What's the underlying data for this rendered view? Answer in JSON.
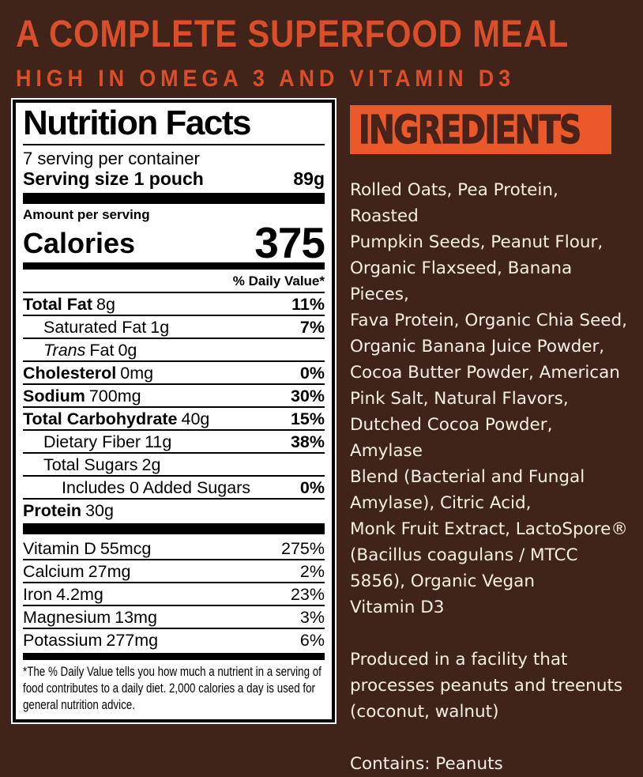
{
  "colors": {
    "background": "#412419",
    "headline": "#DB4E2A",
    "banner_bg": "#EB5829",
    "banner_text": "#48231A",
    "ingredients_text": "#F6EFE3",
    "panel_bg": "#FFFFFF",
    "panel_text": "#000000"
  },
  "header": {
    "line1": "A COMPLETE SUPERFOOD MEAL",
    "line2": "HIGH IN OMEGA 3 AND VITAMIN D3"
  },
  "nutrition": {
    "title": "Nutrition Facts",
    "servings_per_container": "7 serving per container",
    "serving_size_label": "Serving size 1 pouch",
    "serving_size_value": "89g",
    "amount_per_serving_label": "Amount per serving",
    "calories_label": "Calories",
    "calories_value": "375",
    "daily_value_header": "% Daily Value*",
    "rows": [
      {
        "label": "Total Fat",
        "amount": "8g",
        "dv": "11%"
      },
      {
        "label": "Saturated Fat",
        "amount": "1g",
        "dv": "7%"
      },
      {
        "label_italic": "Trans",
        "label": "Fat",
        "amount": "0g",
        "dv": ""
      },
      {
        "label": "Cholesterol",
        "amount": "0mg",
        "dv": "0%"
      },
      {
        "label": "Sodium",
        "amount": "700mg",
        "dv": "30%"
      },
      {
        "label": "Total Carbohydrate",
        "amount": "40g",
        "dv": "15%"
      },
      {
        "label": "Dietary Fiber",
        "amount": "11g",
        "dv": "38%"
      },
      {
        "label": "Total Sugars",
        "amount": "2g",
        "dv": ""
      },
      {
        "label": "Includes 0 Added Sugars",
        "amount": "",
        "dv": "0%"
      },
      {
        "label": "Protein",
        "amount": "30g",
        "dv": ""
      }
    ],
    "micronutrients": [
      {
        "label": "Vitamin D",
        "amount": "55mcg",
        "dv": "275%"
      },
      {
        "label": "Calcium",
        "amount": "27mg",
        "dv": "2%"
      },
      {
        "label": "Iron",
        "amount": "4.2mg",
        "dv": "23%"
      },
      {
        "label": "Magnesium",
        "amount": "13mg",
        "dv": "3%"
      },
      {
        "label": "Potassium",
        "amount": "277mg",
        "dv": "6%"
      }
    ],
    "footnote": "*The % Daily Value tells you how much a nutrient in a serving of food contributes to a daily diet. 2,000 calories a day is used for general nutrition advice."
  },
  "ingredients": {
    "heading": "INGREDIENTS",
    "list": "Rolled Oats, Pea Protein, Roasted\nPumpkin Seeds, Peanut Flour,\nOrganic Flaxseed, Banana Pieces,\nFava Protein, Organic Chia Seed,\nOrganic Banana Juice Powder,\nCocoa Butter Powder, American\nPink Salt, Natural Flavors,\nDutched Cocoa Powder, Amylase\nBlend (Bacterial and Fungal\nAmylase), Citric Acid,\nMonk Fruit Extract, LactoSpore®\n(Bacillus coagulans / MTCC\n5856), Organic Vegan\nVitamin D3",
    "facility_note": "Produced in a facility that\nprocesses peanuts and treenuts\n(coconut, walnut)",
    "contains": "Contains: Peanuts"
  }
}
